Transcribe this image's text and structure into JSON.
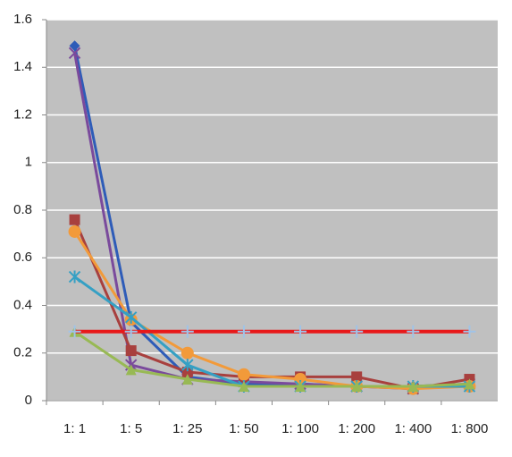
{
  "chart_data": {
    "type": "line",
    "categories": [
      "1: 1",
      "1: 5",
      "1: 25",
      "1: 50",
      "1: 100",
      "1: 200",
      "1: 400",
      "1: 800"
    ],
    "series": [
      {
        "color": "#2e5cb8",
        "marker": "diamond",
        "values": [
          1.49,
          0.33,
          0.1,
          0.07,
          0.07,
          0.06,
          0.06,
          0.07
        ]
      },
      {
        "color": "#7a4a9c",
        "marker": "x",
        "values": [
          1.46,
          0.15,
          0.09,
          0.08,
          0.07,
          0.06,
          0.05,
          0.07
        ]
      },
      {
        "color": "#a8403e",
        "marker": "square",
        "values": [
          0.76,
          0.21,
          0.12,
          0.1,
          0.1,
          0.1,
          0.05,
          0.09
        ]
      },
      {
        "color": "#f29a3a",
        "marker": "circle",
        "values": [
          0.71,
          0.34,
          0.2,
          0.11,
          0.09,
          0.06,
          0.05,
          0.06
        ]
      },
      {
        "color": "#35a0c4",
        "marker": "star",
        "values": [
          0.52,
          0.35,
          0.15,
          0.06,
          0.06,
          0.06,
          0.06,
          0.06
        ]
      },
      {
        "color": "#98b954",
        "marker": "triangle",
        "values": [
          0.29,
          0.13,
          0.09,
          0.06,
          0.06,
          0.06,
          0.06,
          0.07
        ]
      },
      {
        "color": "#e8191a",
        "marker": "plus",
        "marker_color": "#9fc3e8",
        "values": [
          0.29,
          0.29,
          0.29,
          0.29,
          0.29,
          0.29,
          0.29,
          0.29
        ]
      }
    ],
    "ylim": [
      0,
      1.6
    ],
    "yticks": [
      0,
      0.2,
      0.4,
      0.6,
      0.8,
      1,
      1.2,
      1.4,
      1.6
    ],
    "grid": true,
    "plot_background": "#c0c0c0",
    "grid_color": "#ffffff"
  }
}
